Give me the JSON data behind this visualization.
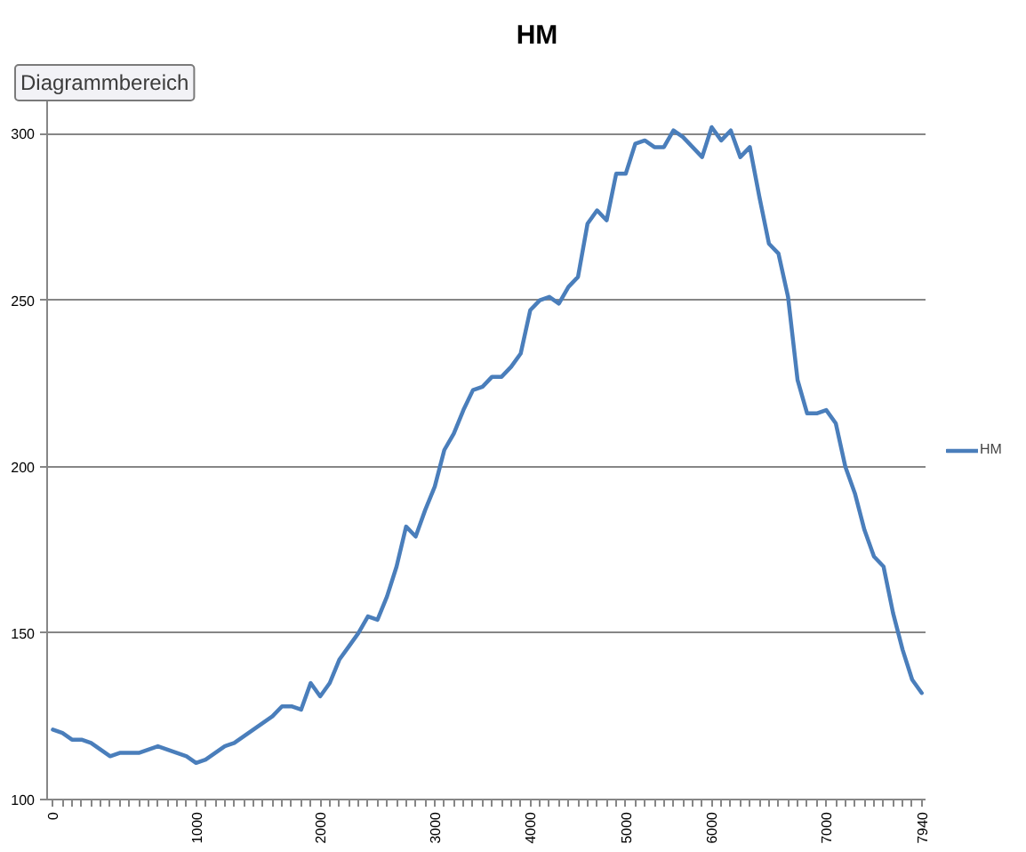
{
  "chart_data": {
    "type": "line",
    "title": "HM",
    "annotations": [
      "Diagrammbereich"
    ],
    "categories": [
      "0",
      null,
      null,
      null,
      null,
      null,
      null,
      null,
      null,
      null,
      null,
      null,
      null,
      null,
      null,
      "1000",
      null,
      null,
      null,
      null,
      null,
      null,
      null,
      null,
      null,
      null,
      null,
      null,
      "2000",
      null,
      null,
      null,
      null,
      null,
      null,
      null,
      null,
      null,
      null,
      null,
      "3000",
      null,
      null,
      null,
      null,
      null,
      null,
      null,
      null,
      null,
      "4000",
      null,
      null,
      null,
      null,
      null,
      null,
      null,
      null,
      null,
      "5000",
      null,
      null,
      null,
      null,
      null,
      null,
      null,
      null,
      "6000",
      null,
      null,
      null,
      null,
      null,
      null,
      null,
      null,
      null,
      null,
      null,
      "7000",
      null,
      null,
      null,
      null,
      null,
      null,
      null,
      null,
      null,
      "7940"
    ],
    "series": [
      {
        "name": "HM",
        "color": "#4a7ebb",
        "values": [
          121,
          120,
          118,
          118,
          117,
          115,
          113,
          114,
          114,
          114,
          115,
          116,
          115,
          114,
          113,
          111,
          112,
          114,
          116,
          117,
          119,
          121,
          123,
          125,
          128,
          128,
          127,
          135,
          131,
          135,
          142,
          146,
          150,
          155,
          154,
          161,
          170,
          182,
          179,
          187,
          194,
          205,
          210,
          217,
          223,
          224,
          227,
          227,
          230,
          234,
          247,
          250,
          251,
          249,
          254,
          257,
          273,
          277,
          274,
          288,
          288,
          297,
          298,
          296,
          296,
          301,
          299,
          296,
          293,
          302,
          298,
          301,
          293,
          296,
          281,
          267,
          264,
          251,
          226,
          216,
          216,
          217,
          213,
          200,
          192,
          181,
          173,
          170,
          156,
          145,
          136,
          132
        ]
      }
    ],
    "ylim": [
      100,
      310
    ],
    "yticks": [
      100,
      150,
      200,
      250,
      300
    ],
    "grid": "y",
    "legend": "right"
  }
}
